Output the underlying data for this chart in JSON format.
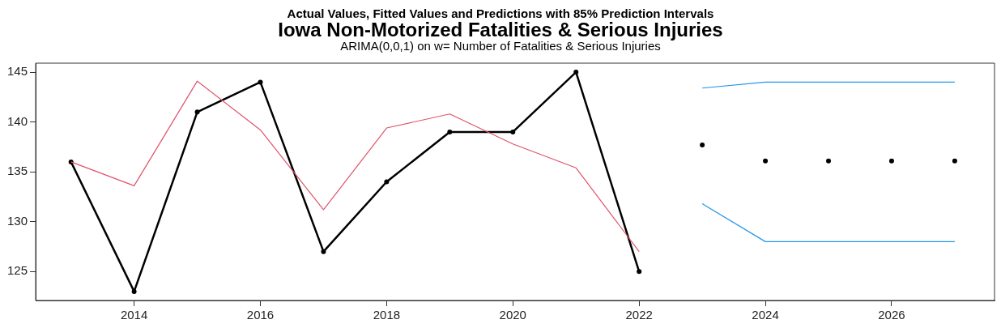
{
  "chart_data": {
    "type": "line",
    "title": "Iowa Non-Motorized Fatalities & Serious Injuries",
    "subtitle": "ARIMA(0,0,1) on w= Number of Fatalities & Serious Injuries",
    "annotations": [
      "Actual Values, Fitted Values and Predictions with 85%  Prediction Intervals"
    ],
    "series": [
      {
        "color": "#df536b",
        "marker": "none",
        "x": [
          2013,
          2014,
          2015,
          2016,
          2017,
          2018,
          2019,
          2020,
          2021,
          2022
        ],
        "values": [
          136,
          133.6,
          144.1,
          139.2,
          131.2,
          139.4,
          140.8,
          137.8,
          135.4,
          127.0
        ]
      },
      {
        "color": "#000000",
        "marker": "circle",
        "x": [
          2013,
          2014,
          2015,
          2016,
          2017,
          2018,
          2019,
          2020,
          2021,
          2022
        ],
        "values": [
          136,
          123,
          141,
          144,
          127,
          134,
          139,
          139,
          145,
          125
        ]
      },
      {
        "type": "scatter",
        "color": "#000000",
        "marker": "circle",
        "x": [
          2023,
          2024,
          2025,
          2026,
          2027
        ],
        "values": [
          137.7,
          136.1,
          136.1,
          136.1,
          136.1
        ]
      },
      {
        "color": "#2297e6",
        "marker": "none",
        "x": [
          2023,
          2024,
          2025,
          2026,
          2027
        ],
        "values": [
          143.4,
          144.0,
          144.0,
          144.0,
          144.0
        ]
      },
      {
        "color": "#2297e6",
        "marker": "none",
        "x": [
          2023,
          2024,
          2025,
          2026,
          2027
        ],
        "values": [
          131.8,
          128.0,
          128.0,
          128.0,
          128.0
        ]
      }
    ],
    "xlim": [
      2012.44,
      2027.63
    ],
    "ylim": [
      122.1,
      145.9
    ],
    "xticks": [
      2014,
      2016,
      2018,
      2020,
      2022,
      2024,
      2026
    ],
    "yticks": [
      125,
      130,
      135,
      140,
      145
    ],
    "grid": false,
    "legend": false
  }
}
